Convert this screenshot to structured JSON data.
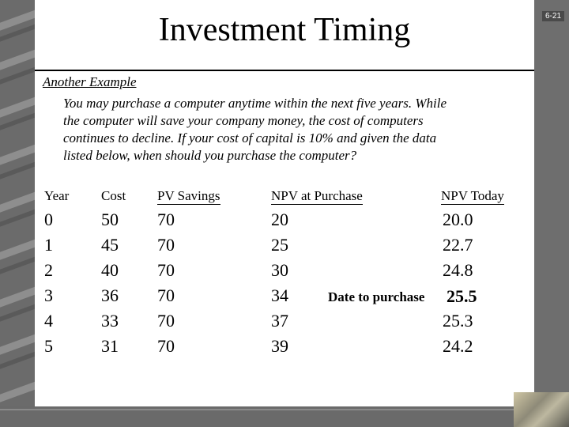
{
  "slide": {
    "number": "6-21",
    "title": "Investment Timing"
  },
  "example": {
    "heading": "Another Example",
    "paragraph_lines": [
      "You may purchase a computer anytime within the next five years.  While",
      "the computer will save your company money, the cost of computers",
      "continues to decline.  If your cost of capital is 10% and given the data",
      "listed below, when should you purchase the computer?"
    ]
  },
  "table": {
    "headers": {
      "year": "Year",
      "cost": "Cost",
      "pv": "PV Savings",
      "npv_purchase": "NPV at Purchase",
      "npv_today": "NPV Today"
    },
    "rows": [
      {
        "year": "0",
        "cost": "50",
        "pv": "70",
        "npv_purchase": "20",
        "npv_today": "20.0"
      },
      {
        "year": "1",
        "cost": "45",
        "pv": "70",
        "npv_purchase": "25",
        "npv_today": "22.7"
      },
      {
        "year": "2",
        "cost": "40",
        "pv": "70",
        "npv_purchase": "30",
        "npv_today": "24.8"
      },
      {
        "year": "3",
        "cost": "36",
        "pv": "70",
        "npv_purchase": "34",
        "npv_today": "25.5"
      },
      {
        "year": "4",
        "cost": "33",
        "pv": "70",
        "npv_purchase": "37",
        "npv_today": "25.3"
      },
      {
        "year": "5",
        "cost": "31",
        "pv": "70",
        "npv_purchase": "39",
        "npv_today": "24.2"
      }
    ],
    "purchase_note": "Date to purchase"
  }
}
